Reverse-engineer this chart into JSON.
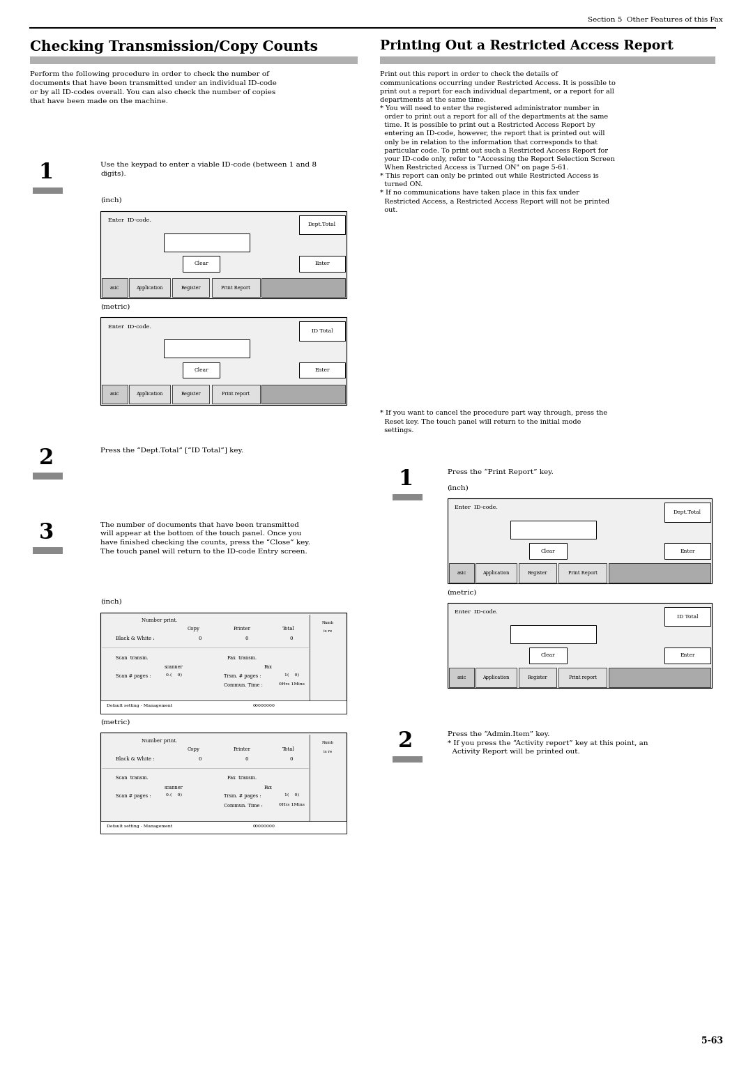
{
  "page_width": 10.8,
  "page_height": 15.28,
  "background_color": "#ffffff",
  "header_text": "Section 5  Other Features of this Fax",
  "page_number": "5-63",
  "left_title": "Checking Transmission/Copy Counts",
  "right_title": "Printing Out a Restricted Access Report",
  "left_intro": "Perform the following procedure in order to check the number of\ndocuments that have been transmitted under an individual ID-code\nor by all ID-codes overall. You can also check the number of copies\nthat have been made on the machine.",
  "right_intro": "Print out this report in order to check the details of\ncommunications occurring under Restricted Access. It is possible to\nprint out a report for each individual department, or a report for all\ndepartments at the same time.\n* You will need to enter the registered administrator number in\n  order to print out a report for all of the departments at the same\n  time. It is possible to print out a Restricted Access Report by\n  entering an ID-code, however, the report that is printed out will\n  only be in relation to the information that corresponds to that\n  particular code. To print out such a Restricted Access Report for\n  your ID-code only, refer to \"Accessing the Report Selection Screen\n  When Restricted Access is Turned ON\" on page 5-61.\n* This report can only be printed out while Restricted Access is\n  turned ON.\n* If no communications have taken place in this fax under\n  Restricted Access, a Restricted Access Report will not be printed\n  out.",
  "right_note": "* If you want to cancel the procedure part way through, press the\n  Reset key. The touch panel will return to the initial mode\n  settings.",
  "left_step1_text": "Use the keypad to enter a viable ID-code (between 1 and 8\ndigits).",
  "left_step2_text": "Press the “Dept.Total” [“ID Total”] key.",
  "left_step3_text": "The number of documents that have been transmitted\nwill appear at the bottom of the touch panel. Once you\nhave finished checking the counts, press the “Close” key.\nThe touch panel will return to the ID-code Entry screen.",
  "right_step1_text": "Press the “Print Report” key.",
  "right_step2_text": "Press the “Admin.Item” key.\n* If you press the “Activity report” key at this point, an\n  Activity Report will be printed out."
}
